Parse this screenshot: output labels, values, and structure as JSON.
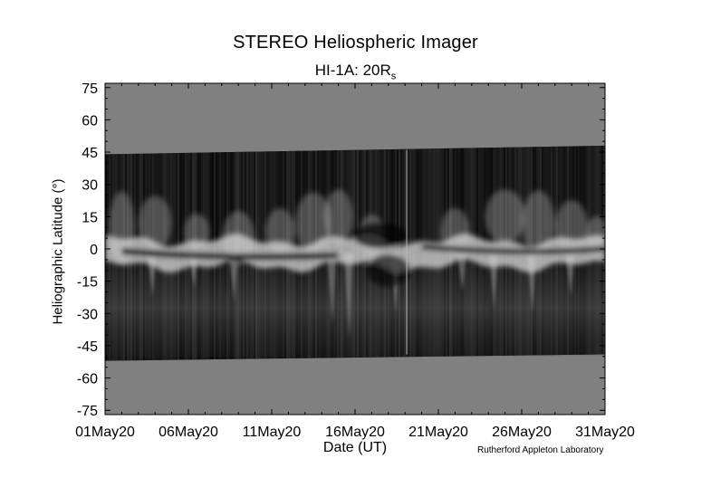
{
  "chart_data": {
    "type": "heatmap",
    "title": "STEREO Heliospheric Imager",
    "subtitle_main": "HI-1A: 20R",
    "subtitle_sub": "s",
    "xlabel": "Date (UT)",
    "ylabel": "Heliographic Latitude (°)",
    "ylim": [
      -77,
      77
    ],
    "yticks": [
      "75",
      "60",
      "45",
      "30",
      "15",
      "0",
      "-15",
      "-30",
      "-45",
      "-60",
      "-75"
    ],
    "ytick_values": [
      75,
      60,
      45,
      30,
      15,
      0,
      -15,
      -30,
      -45,
      -60,
      -75
    ],
    "xlim_days": [
      1,
      31
    ],
    "xticks": [
      "01May20",
      "06May20",
      "11May20",
      "16May20",
      "21May20",
      "26May20",
      "31May20"
    ],
    "xtick_days": [
      1,
      6,
      11,
      16,
      21,
      26,
      31
    ],
    "data_coverage": {
      "upper_latitude_start": 44,
      "upper_latitude_end": 48,
      "lower_latitude_start": -52,
      "lower_latitude_end": -49
    },
    "bright_band_latitude": [
      -2,
      4
    ],
    "data_gap_day": 19.1,
    "grid": false,
    "colormap": "grayscale",
    "background_fill": "#808080"
  },
  "credit": "Rutherford Appleton Laboratory"
}
